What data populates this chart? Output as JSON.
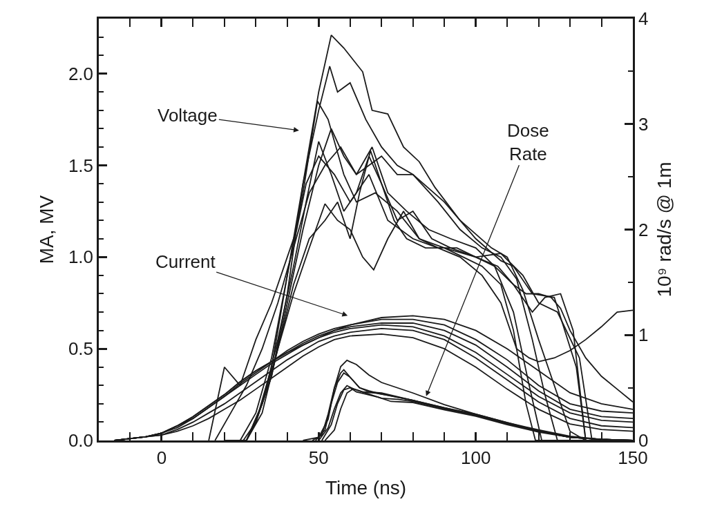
{
  "chart_data": {
    "type": "line",
    "xlabel": "Time (ns)",
    "ylabel": "MA, MV",
    "y2label": "10⁹ rad/s @ 1m",
    "xlim": [
      -20,
      150
    ],
    "xticks": [
      {
        "value": -10,
        "label": null
      },
      0,
      {
        "value": 10,
        "label": null
      },
      {
        "value": 20,
        "label": null
      },
      {
        "value": 30,
        "label": null
      },
      {
        "value": 40,
        "label": null
      },
      50,
      {
        "value": 60,
        "label": null
      },
      {
        "value": 70,
        "label": null
      },
      {
        "value": 80,
        "label": null
      },
      {
        "value": 90,
        "label": null
      },
      100,
      {
        "value": 110,
        "label": null
      },
      {
        "value": 120,
        "label": null
      },
      {
        "value": 130,
        "label": null
      },
      {
        "value": 140,
        "label": null
      },
      150
    ],
    "ylim": [
      0,
      2.3
    ],
    "yticks": [
      {
        "value": 0,
        "label": "0.0"
      },
      {
        "value": 0.1,
        "label": null
      },
      {
        "value": 0.2,
        "label": null
      },
      {
        "value": 0.3,
        "label": null
      },
      {
        "value": 0.4,
        "label": null
      },
      0.5,
      {
        "value": 0.6,
        "label": null
      },
      {
        "value": 0.7,
        "label": null
      },
      {
        "value": 0.8,
        "label": null
      },
      {
        "value": 0.9,
        "label": null
      },
      {
        "value": 1,
        "label": "1.0"
      },
      {
        "value": 1.1,
        "label": null
      },
      {
        "value": 1.2,
        "label": null
      },
      {
        "value": 1.3,
        "label": null
      },
      {
        "value": 1.4,
        "label": null
      },
      1.5,
      {
        "value": 1.6,
        "label": null
      },
      {
        "value": 1.7,
        "label": null
      },
      {
        "value": 1.8,
        "label": null
      },
      {
        "value": 1.9,
        "label": null
      },
      {
        "value": 2,
        "label": "2.0"
      },
      {
        "value": 2.1,
        "label": null
      },
      {
        "value": 2.2,
        "label": null
      }
    ],
    "y2lim": [
      0,
      4
    ],
    "y2ticks": [
      0,
      {
        "value": 0.5,
        "label": null
      },
      1,
      {
        "value": 1.5,
        "label": null
      },
      2,
      {
        "value": 2.5,
        "label": null
      },
      3,
      {
        "value": 3.5,
        "label": null
      },
      4
    ],
    "marker": "none",
    "line_style": "solid",
    "annotations": [
      "Voltage",
      "Current",
      "Dose\nRate"
    ],
    "series": [
      {
        "color": "#1a1a1a",
        "x": [
          20,
          27,
          30,
          35,
          40,
          45,
          50,
          54,
          58,
          64,
          67,
          72,
          77,
          82,
          87,
          95,
          105,
          110,
          115,
          120,
          125,
          130,
          135,
          150
        ],
        "values": [
          0,
          0,
          0.1,
          0.35,
          0.8,
          1.4,
          1.9,
          2.21,
          2.14,
          2.01,
          1.8,
          1.78,
          1.6,
          1.52,
          1.38,
          1.2,
          1.05,
          1.0,
          0.82,
          0.55,
          0.3,
          0.05,
          0,
          0
        ]
      },
      {
        "color": "#1a1a1a",
        "x": [
          27,
          30,
          35,
          40,
          45,
          50,
          53.5,
          56,
          60,
          65,
          70,
          75,
          80,
          90,
          100,
          108,
          112,
          118,
          125,
          132,
          135,
          150
        ],
        "values": [
          0,
          0.1,
          0.4,
          0.9,
          1.4,
          1.8,
          2.04,
          1.9,
          1.95,
          1.75,
          1.6,
          1.5,
          1.45,
          1.3,
          1.1,
          0.98,
          0.95,
          0.8,
          0.78,
          0.4,
          0,
          0
        ]
      },
      {
        "color": "#1a1a1a",
        "x": [
          25,
          30,
          35,
          40,
          45,
          49.6,
          53,
          58,
          62,
          68,
          75,
          82,
          90,
          100,
          108,
          115,
          120,
          126,
          133,
          137,
          150
        ],
        "values": [
          0,
          0.15,
          0.45,
          0.9,
          1.35,
          1.85,
          1.75,
          1.45,
          1.3,
          1.35,
          1.25,
          1.1,
          1.05,
          1.0,
          1.02,
          0.9,
          0.75,
          0.7,
          0.45,
          0,
          0
        ]
      },
      {
        "color": "#1a1a1a",
        "x": [
          26,
          30,
          35,
          40,
          45,
          50,
          54,
          58,
          62,
          66,
          70,
          75,
          80,
          88,
          95,
          102,
          108,
          113,
          118,
          122,
          126,
          150
        ],
        "values": [
          0,
          0.1,
          0.35,
          0.75,
          1.15,
          1.5,
          1.7,
          1.55,
          1.45,
          1.5,
          1.55,
          1.45,
          1.45,
          1.3,
          1.15,
          1.05,
          1.0,
          0.88,
          0.55,
          0.25,
          0,
          0
        ]
      },
      {
        "color": "#1a1a1a",
        "x": [
          27,
          32,
          37,
          42,
          46,
          50,
          54,
          58,
          62,
          66,
          70,
          75,
          80,
          86,
          92,
          100,
          106,
          112,
          117,
          121,
          150
        ],
        "values": [
          0,
          0.2,
          0.55,
          0.95,
          1.3,
          1.63,
          1.45,
          1.25,
          1.35,
          1.55,
          1.4,
          1.2,
          1.25,
          1.1,
          1.05,
          1.0,
          0.95,
          0.7,
          0.3,
          0,
          0
        ]
      },
      {
        "color": "#1a1a1a",
        "x": [
          27,
          32,
          37,
          42,
          47,
          52,
          56,
          60,
          63,
          66.5,
          70,
          74,
          78,
          84,
          90,
          96,
          102,
          108,
          112,
          116,
          119,
          150
        ],
        "values": [
          0,
          0.15,
          0.5,
          0.85,
          1.1,
          1.2,
          1.3,
          1.1,
          1.35,
          1.58,
          1.4,
          1.2,
          1.1,
          1.05,
          1.05,
          1.0,
          0.95,
          0.85,
          0.6,
          0.2,
          0,
          0
        ]
      },
      {
        "color": "#1a1a1a",
        "x": [
          27,
          32,
          37,
          42,
          47,
          52,
          56,
          60,
          64,
          67.5,
          72,
          77,
          82,
          88,
          94,
          100,
          107,
          112,
          118,
          122,
          127,
          131,
          135,
          150
        ],
        "values": [
          0,
          0.2,
          0.5,
          0.8,
          1.05,
          1.29,
          1.2,
          1.15,
          1.0,
          0.93,
          1.1,
          1.25,
          1.1,
          1.05,
          1.05,
          1.0,
          0.95,
          0.85,
          0.7,
          0.78,
          0.8,
          0.6,
          0,
          0
        ]
      },
      {
        "color": "#1a1a1a",
        "x": [
          17,
          22,
          27,
          32,
          37,
          42,
          47,
          52,
          57,
          62,
          67,
          72,
          78,
          85,
          92,
          100,
          106,
          112,
          116,
          120,
          124,
          127,
          130,
          135,
          140,
          145,
          150
        ],
        "values": [
          0,
          0.15,
          0.3,
          0.5,
          0.75,
          1.05,
          1.35,
          1.5,
          1.6,
          1.45,
          1.6,
          1.35,
          1.25,
          1.15,
          1.1,
          1.05,
          0.95,
          0.85,
          0.8,
          0.8,
          0.78,
          0.72,
          0.6,
          0.45,
          0.35,
          0.28,
          0.21
        ]
      },
      {
        "color": "#1a1a1a",
        "x": [
          15,
          20,
          25,
          30,
          35,
          40,
          43,
          46,
          50,
          55,
          60,
          66,
          72,
          80,
          88,
          95,
          102,
          108,
          113,
          117,
          120,
          125,
          130,
          135,
          140,
          145,
          150
        ],
        "values": [
          0,
          0.4,
          0.3,
          0.55,
          0.75,
          1.0,
          1.15,
          1.4,
          1.55,
          1.45,
          1.3,
          1.45,
          1.2,
          1.1,
          1.05,
          1.0,
          0.9,
          0.75,
          0.5,
          0.45,
          0.43,
          0.45,
          0.49,
          0.55,
          0.62,
          0.7,
          0.71
        ]
      },
      {
        "color": "#1a1a1a",
        "x": [
          -15,
          -5,
          0,
          5,
          10,
          15,
          20,
          25,
          30,
          35,
          40,
          45,
          50,
          55,
          60,
          70,
          80,
          90,
          100,
          110,
          120,
          130,
          140,
          150
        ],
        "values": [
          0,
          0.02,
          0.04,
          0.08,
          0.13,
          0.19,
          0.25,
          0.32,
          0.38,
          0.43,
          0.48,
          0.52,
          0.56,
          0.6,
          0.63,
          0.67,
          0.68,
          0.66,
          0.6,
          0.5,
          0.38,
          0.26,
          0.2,
          0.17
        ]
      },
      {
        "color": "#1a1a1a",
        "x": [
          -15,
          -5,
          0,
          5,
          10,
          15,
          20,
          25,
          30,
          35,
          40,
          45,
          50,
          55,
          60,
          70,
          80,
          90,
          100,
          110,
          120,
          130,
          140,
          150
        ],
        "values": [
          0,
          0.02,
          0.04,
          0.08,
          0.13,
          0.19,
          0.25,
          0.32,
          0.38,
          0.43,
          0.49,
          0.54,
          0.58,
          0.61,
          0.63,
          0.66,
          0.66,
          0.63,
          0.55,
          0.44,
          0.3,
          0.2,
          0.16,
          0.15
        ]
      },
      {
        "color": "#1a1a1a",
        "x": [
          -15,
          -5,
          0,
          5,
          10,
          15,
          20,
          25,
          30,
          35,
          40,
          45,
          50,
          55,
          60,
          70,
          80,
          90,
          100,
          110,
          120,
          130,
          140,
          150
        ],
        "values": [
          0,
          0.02,
          0.04,
          0.08,
          0.12,
          0.18,
          0.24,
          0.31,
          0.37,
          0.43,
          0.48,
          0.53,
          0.57,
          0.6,
          0.62,
          0.64,
          0.64,
          0.6,
          0.52,
          0.4,
          0.27,
          0.17,
          0.13,
          0.12
        ]
      },
      {
        "color": "#1a1a1a",
        "x": [
          -15,
          -5,
          0,
          5,
          10,
          15,
          20,
          25,
          30,
          35,
          40,
          45,
          50,
          55,
          60,
          70,
          80,
          90,
          100,
          110,
          120,
          130,
          140,
          150
        ],
        "values": [
          0,
          0.02,
          0.04,
          0.07,
          0.12,
          0.18,
          0.24,
          0.3,
          0.36,
          0.42,
          0.47,
          0.52,
          0.56,
          0.59,
          0.61,
          0.63,
          0.62,
          0.57,
          0.48,
          0.36,
          0.24,
          0.15,
          0.11,
          0.1
        ]
      },
      {
        "color": "#1a1a1a",
        "x": [
          -15,
          -5,
          0,
          5,
          10,
          15,
          20,
          25,
          30,
          35,
          40,
          45,
          50,
          55,
          60,
          70,
          80,
          90,
          100,
          110,
          120,
          130,
          140,
          150
        ],
        "values": [
          0,
          0.02,
          0.03,
          0.06,
          0.1,
          0.15,
          0.2,
          0.26,
          0.32,
          0.38,
          0.44,
          0.49,
          0.54,
          0.57,
          0.59,
          0.61,
          0.6,
          0.55,
          0.45,
          0.33,
          0.21,
          0.12,
          0.08,
          0.07
        ]
      },
      {
        "color": "#1a1a1a",
        "x": [
          -15,
          -5,
          0,
          5,
          10,
          15,
          20,
          25,
          30,
          35,
          40,
          45,
          50,
          55,
          60,
          70,
          80,
          90,
          100,
          110,
          120,
          130,
          140,
          150
        ],
        "values": [
          0,
          0.02,
          0.03,
          0.05,
          0.08,
          0.12,
          0.17,
          0.22,
          0.28,
          0.34,
          0.4,
          0.46,
          0.51,
          0.55,
          0.57,
          0.58,
          0.56,
          0.5,
          0.4,
          0.28,
          0.17,
          0.09,
          0.06,
          0.05
        ]
      },
      {
        "color": "#1a1a1a",
        "axis": "y2",
        "x": [
          45,
          50,
          53,
          55,
          57,
          59,
          62,
          66,
          70,
          80,
          90,
          100,
          110,
          120,
          130,
          140,
          150
        ],
        "values": [
          0,
          0.03,
          0.2,
          0.5,
          0.7,
          0.76,
          0.72,
          0.62,
          0.55,
          0.45,
          0.34,
          0.25,
          0.17,
          0.1,
          0.04,
          0.01,
          0
        ]
      },
      {
        "color": "#1a1a1a",
        "axis": "y2",
        "x": [
          48,
          51,
          53,
          55,
          57,
          58,
          60,
          63,
          66,
          70,
          80,
          90,
          100,
          110,
          120,
          130,
          140,
          150
        ],
        "values": [
          0,
          0.05,
          0.25,
          0.5,
          0.64,
          0.67,
          0.6,
          0.5,
          0.46,
          0.45,
          0.38,
          0.31,
          0.24,
          0.16,
          0.09,
          0.03,
          0.01,
          0
        ]
      },
      {
        "color": "#1a1a1a",
        "axis": "y2",
        "x": [
          49,
          52,
          54,
          56,
          58,
          60,
          63,
          66,
          70,
          80,
          90,
          100,
          110,
          120,
          130,
          140,
          150
        ],
        "values": [
          0,
          0.1,
          0.35,
          0.55,
          0.64,
          0.6,
          0.5,
          0.47,
          0.44,
          0.38,
          0.31,
          0.25,
          0.17,
          0.09,
          0.03,
          0.01,
          0
        ]
      },
      {
        "color": "#1a1a1a",
        "axis": "y2",
        "x": [
          50,
          53,
          55,
          57,
          59,
          61,
          64,
          68,
          72,
          80,
          90,
          100,
          110,
          120,
          130,
          140,
          150
        ],
        "values": [
          0,
          0.12,
          0.3,
          0.45,
          0.52,
          0.49,
          0.46,
          0.45,
          0.43,
          0.38,
          0.3,
          0.24,
          0.16,
          0.09,
          0.03,
          0.01,
          0
        ]
      },
      {
        "color": "#1a1a1a",
        "axis": "y2",
        "x": [
          51,
          54,
          56,
          58,
          60,
          62,
          65,
          69,
          73,
          80,
          90,
          100,
          110,
          120,
          130,
          140,
          150
        ],
        "values": [
          0,
          0.15,
          0.35,
          0.48,
          0.5,
          0.46,
          0.44,
          0.41,
          0.37,
          0.36,
          0.29,
          0.23,
          0.15,
          0.08,
          0.03,
          0.01,
          0
        ]
      },
      {
        "color": "#1a1a1a",
        "axis": "y2",
        "x": [
          52,
          55,
          57,
          59,
          61,
          63,
          66,
          70,
          75,
          80,
          90,
          100,
          110,
          120,
          130,
          140,
          150
        ],
        "values": [
          0,
          0.1,
          0.3,
          0.45,
          0.49,
          0.47,
          0.44,
          0.4,
          0.39,
          0.37,
          0.3,
          0.24,
          0.16,
          0.09,
          0.03,
          0.01,
          0
        ]
      }
    ]
  }
}
